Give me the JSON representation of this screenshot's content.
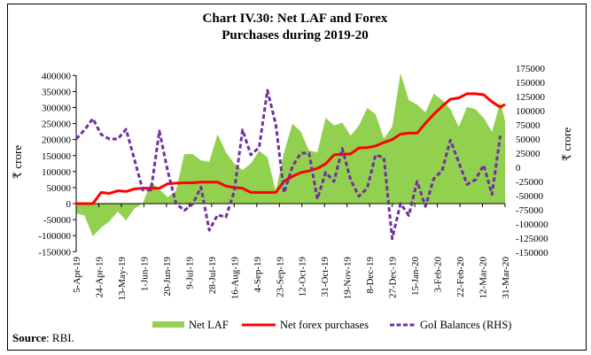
{
  "chart_data": {
    "type": "area+line",
    "title_line1": "Chart IV.30: Net LAF and Forex",
    "title_line2": "Purchases during 2019-20",
    "ylabel_left": "₹ crore",
    "ylabel_right": "₹ crore",
    "ylim_left": [
      -150000,
      400000
    ],
    "ylim_right": [
      -150000,
      175000
    ],
    "yticks_left": [
      "400000",
      "350000",
      "300000",
      "250000",
      "200000",
      "150000",
      "100000",
      "50000",
      "0",
      "-50000",
      "-100000",
      "-150000"
    ],
    "yticks_right": [
      "175000",
      "150000",
      "125000",
      "100000",
      "75000",
      "50000",
      "25000",
      "0",
      "-25000",
      "-50000",
      "-75000",
      "-100000",
      "-125000",
      "-150000"
    ],
    "xlim": [
      "2019-04-05",
      "2020-03-31"
    ],
    "xtick_labels": [
      "5-Apr-19",
      "24-Apr-19",
      "13-May-19",
      "1-Jun-19",
      "20-Jun-19",
      "9-Jul-19",
      "28-Jul-19",
      "16-Aug-19",
      "4-Sep-19",
      "23-Sep-19",
      "12-Oct-19",
      "31-Oct-19",
      "19-Nov-19",
      "8-Dec-19",
      "27-Dec-19",
      "15-Jan-20",
      "3-Feb-20",
      "22-Feb-20",
      "12-Mar-20",
      "31-Mar-20"
    ],
    "x": [
      "2019-04-05",
      "2019-04-12",
      "2019-04-19",
      "2019-04-26",
      "2019-05-03",
      "2019-05-10",
      "2019-05-17",
      "2019-05-24",
      "2019-05-31",
      "2019-06-07",
      "2019-06-14",
      "2019-06-21",
      "2019-06-28",
      "2019-07-05",
      "2019-07-12",
      "2019-07-19",
      "2019-07-26",
      "2019-08-02",
      "2019-08-09",
      "2019-08-16",
      "2019-08-23",
      "2019-08-30",
      "2019-09-06",
      "2019-09-13",
      "2019-09-20",
      "2019-09-27",
      "2019-10-04",
      "2019-10-11",
      "2019-10-18",
      "2019-10-25",
      "2019-11-01",
      "2019-11-08",
      "2019-11-15",
      "2019-11-22",
      "2019-11-29",
      "2019-12-06",
      "2019-12-13",
      "2019-12-20",
      "2019-12-27",
      "2020-01-03",
      "2020-01-10",
      "2020-01-17",
      "2020-01-24",
      "2020-01-31",
      "2020-02-07",
      "2020-02-14",
      "2020-02-21",
      "2020-02-28",
      "2020-03-06",
      "2020-03-13",
      "2020-03-20",
      "2020-03-27",
      "2020-03-31"
    ],
    "series": [
      {
        "name": "Net LAF",
        "type": "area",
        "axis": "left",
        "color": "#92d050",
        "values": [
          -30000,
          -37000,
          -102000,
          -75000,
          -55000,
          -25000,
          -52000,
          -15000,
          0,
          69000,
          45000,
          20000,
          40000,
          155000,
          155000,
          135000,
          130000,
          217000,
          160000,
          125000,
          105000,
          125000,
          165000,
          145000,
          40000,
          160000,
          250000,
          225000,
          166000,
          160000,
          268000,
          244000,
          253000,
          212000,
          244000,
          299000,
          279000,
          203000,
          240000,
          407000,
          323000,
          309000,
          285000,
          343000,
          323000,
          295000,
          240000,
          302000,
          295000,
          268000,
          224000,
          318000,
          258000
        ]
      },
      {
        "name": "Net forex purchases",
        "type": "line",
        "axis": "left",
        "color": "#ff0000",
        "values": [
          0,
          0,
          0,
          35000,
          32000,
          40000,
          38000,
          46000,
          48000,
          48000,
          48000,
          62000,
          64000,
          65000,
          65000,
          67000,
          67000,
          67000,
          55000,
          50000,
          48000,
          35000,
          35000,
          35000,
          35000,
          70000,
          85000,
          97000,
          102000,
          110000,
          124000,
          152000,
          155000,
          155000,
          174000,
          175000,
          180000,
          191000,
          200000,
          217000,
          220000,
          220000,
          251000,
          279000,
          304000,
          326000,
          330000,
          343000,
          343000,
          340000,
          318000,
          301000,
          310000
        ]
      },
      {
        "name": "GoI Balances (RHS)",
        "type": "dashed-line",
        "axis": "right",
        "color": "#7030a0",
        "values": [
          50000,
          66000,
          86000,
          58000,
          50000,
          50000,
          67000,
          14000,
          -40000,
          -40000,
          64000,
          -6000,
          -64000,
          -76000,
          -65000,
          -35000,
          -111000,
          -84000,
          -88000,
          -43000,
          66000,
          22000,
          35000,
          136000,
          76000,
          -45000,
          1500,
          25000,
          25000,
          -56000,
          -9000,
          -25000,
          33000,
          -22000,
          -51000,
          -37000,
          22000,
          17000,
          -126000,
          -64000,
          -85000,
          -25000,
          -69000,
          -20000,
          -6000,
          48000,
          9000,
          -30000,
          -22000,
          4000,
          -48000,
          56000,
          null
        ]
      }
    ],
    "legend_position": "bottom",
    "grid": false
  },
  "source_label": "Source",
  "source_text": ": RBI."
}
